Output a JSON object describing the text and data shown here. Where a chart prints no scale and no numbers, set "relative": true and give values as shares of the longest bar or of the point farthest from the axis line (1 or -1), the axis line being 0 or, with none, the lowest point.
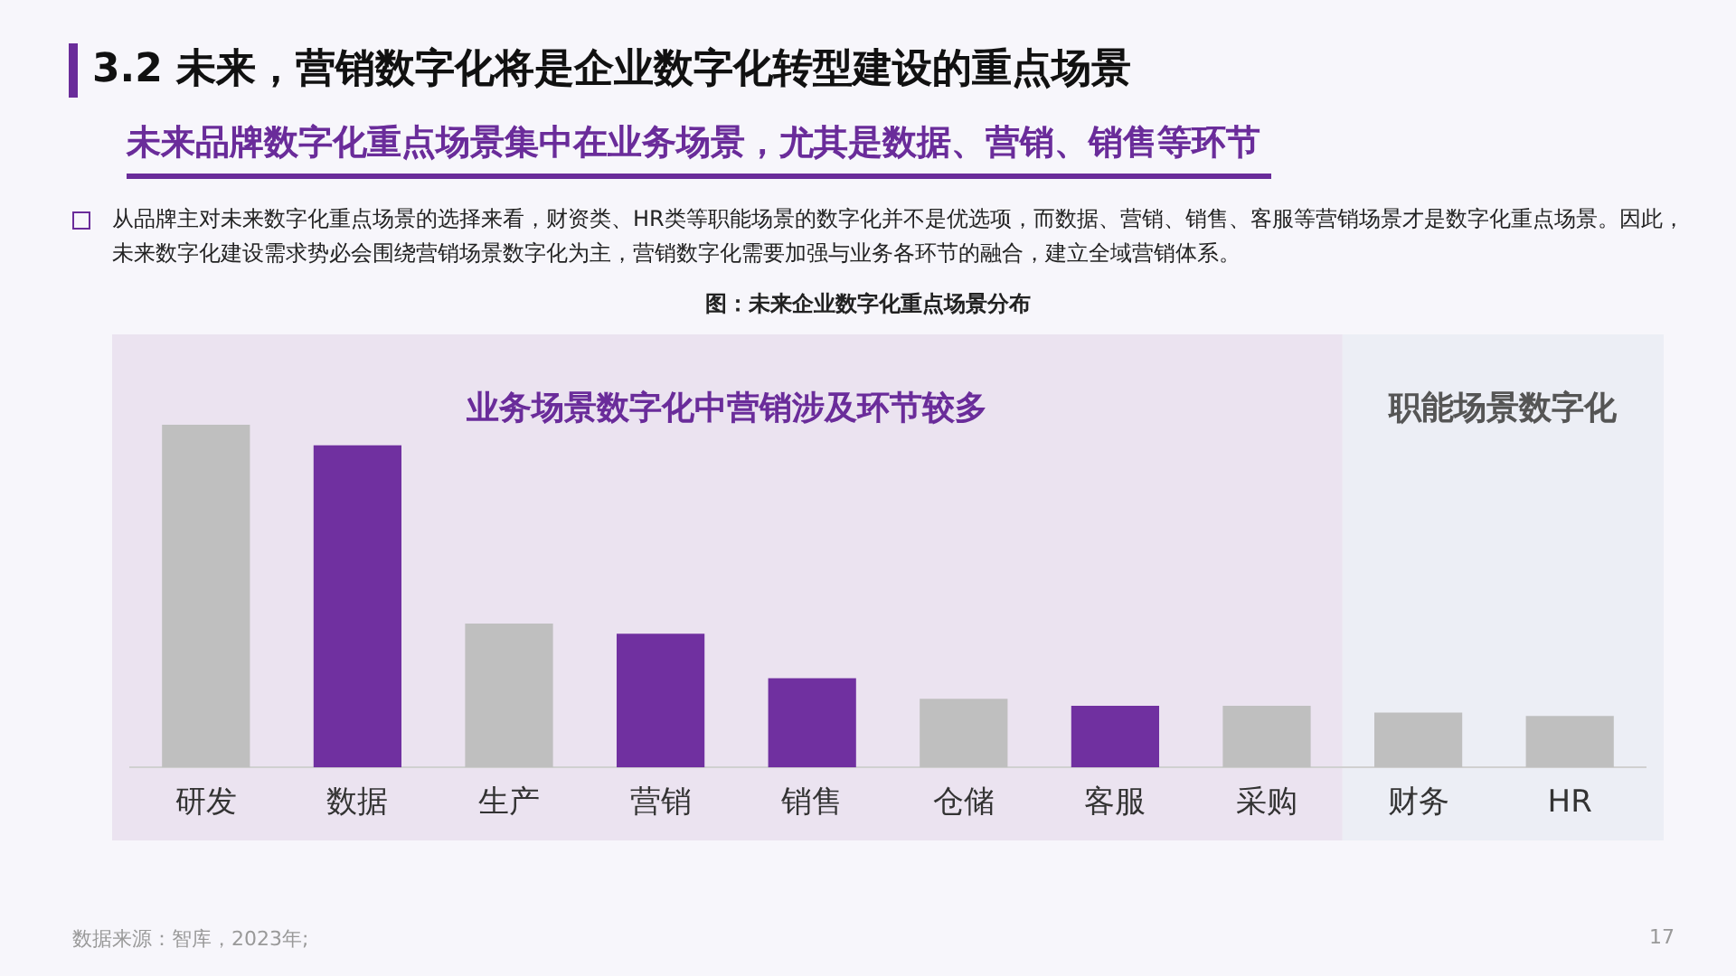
{
  "chart_data": {
    "type": "bar",
    "title": "3.2 未来，营销数字化将是企业数字化转型建设的重点场景",
    "subtitle": "未来品牌数字化重点场景集中在业务场景，尤其是数据、营销、销售等环节",
    "categories": [
      "研发",
      "数据",
      "生产",
      "营销",
      "销售",
      "仓储",
      "客服",
      "采购",
      "财务",
      "HR"
    ],
    "values": [
      1,
      0.94,
      0.42,
      0.39,
      0.26,
      0.2,
      0.18,
      0.18,
      0.16,
      0.15
    ],
    "colors": [
      "#bfbfbf",
      "#7030a0",
      "#bfbfbf",
      "#7030a0",
      "#7030a0",
      "#bfbfbf",
      "#7030a0",
      "#bfbfbf",
      "#bfbfbf",
      "#bfbfbf"
    ],
    "relative": true,
    "bands": [
      {
        "axis": "x",
        "from": "研发",
        "to": "采购",
        "label": "业务场景数字化中营销涉及环节较多",
        "color": "#ebe3f0"
      },
      {
        "axis": "x",
        "from": "财务",
        "to": "HR",
        "label": "职能场景数字化",
        "color": "#eceef5"
      }
    ],
    "annotations": [
      "从品牌主对未来数字化重点场景的选择来看，财资类、HR类等职能场景的数字化并不是优选项，而数据、营销、销售、客服等营销场景才是数字化重点场景。因此，未来数字化建设需求势必会围绕营销场景数字化为主，营销数字化需要加强与业务各环节的融合，建立全域营销体系。",
      "图：未来企业数字化重点场景分布",
      "数据来源：智库，2023年;",
      "17"
    ],
    "grid": false,
    "legend": false
  }
}
